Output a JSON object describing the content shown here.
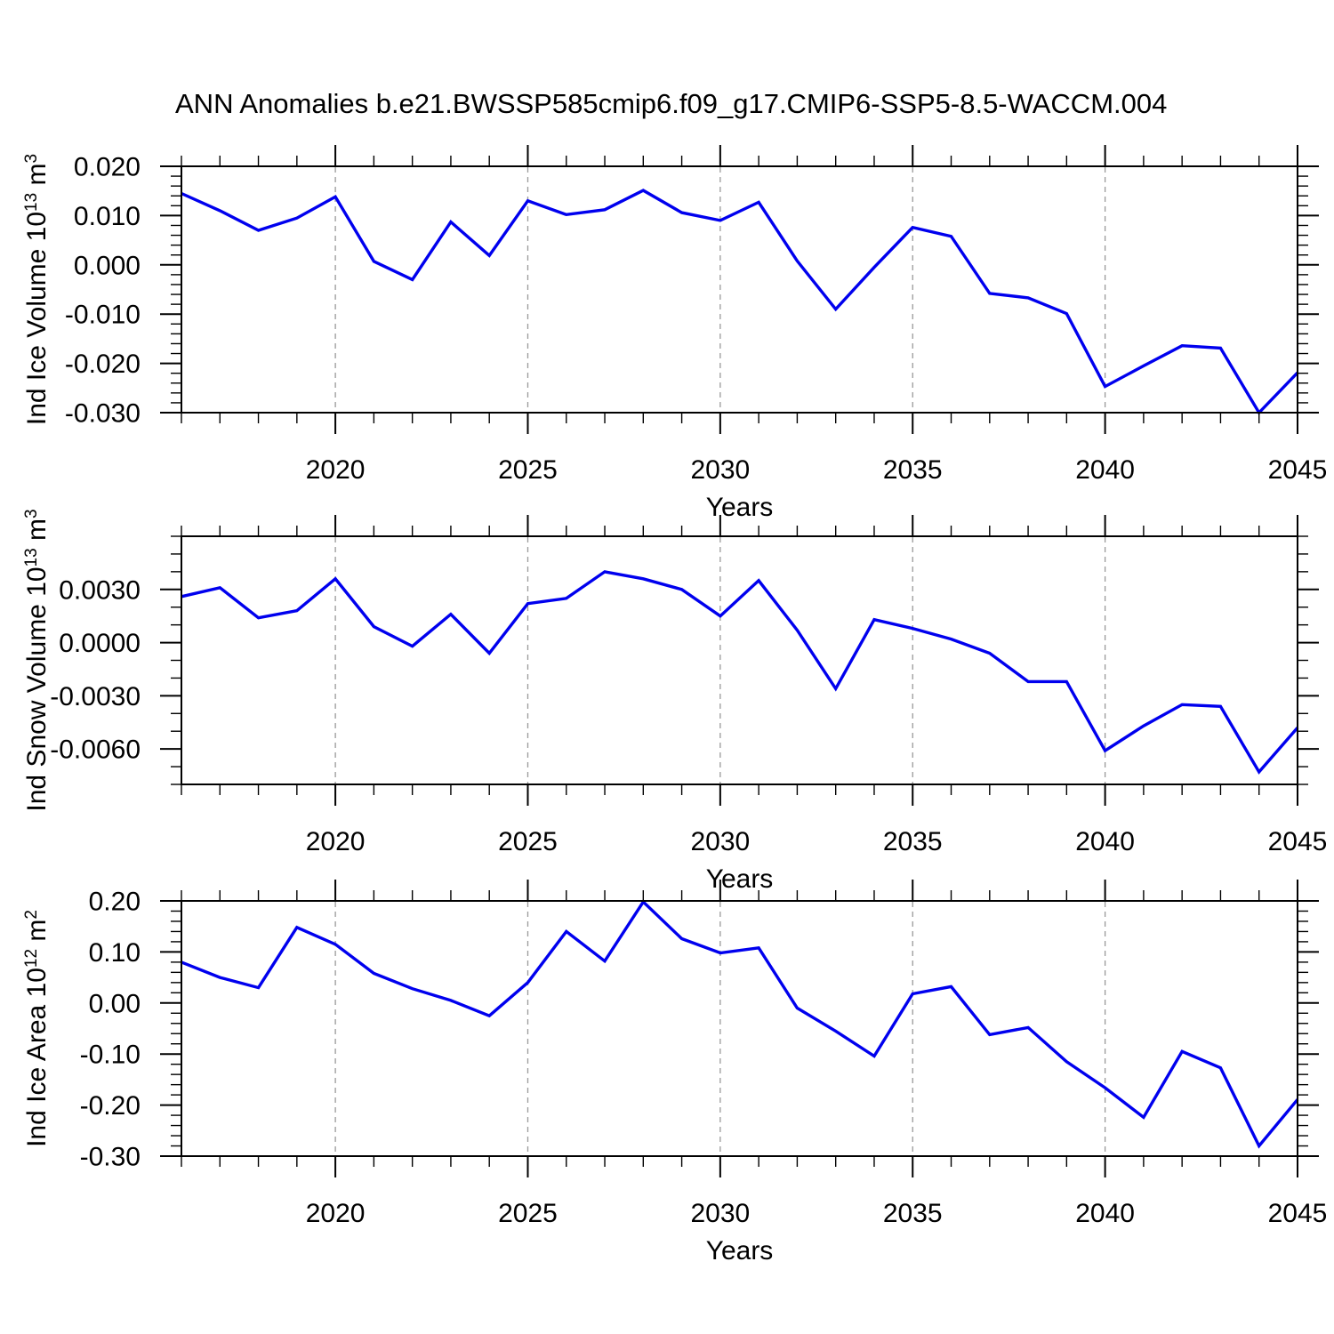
{
  "title": "ANN Anomalies b.e21.BWSSP585cmip6.f09_g17.CMIP6-SSP5-8.5-WACCM.004",
  "colors": {
    "line": "#0000ee",
    "grid": "#999999",
    "axis": "#000000",
    "background": "#ffffff",
    "text": "#000000"
  },
  "x_axis": {
    "label": "Years",
    "years_start": 2016,
    "years_end": 2045,
    "minor_tick_step": 1,
    "major_tick_years": [
      2020,
      2025,
      2030,
      2035,
      2040,
      2045
    ],
    "major_tick_labels": [
      "2020",
      "2025",
      "2030",
      "2035",
      "2040",
      "2045"
    ],
    "gridline_years": [
      2020,
      2025,
      2030,
      2035,
      2040
    ]
  },
  "chart_data": [
    {
      "type": "line",
      "ylabel": "Ind Ice Volume 10^13^ m^3^",
      "xlabel": "Years",
      "ylim": [
        -0.03,
        0.02
      ],
      "ytick_values": [
        0.02,
        0.01,
        0.0,
        -0.01,
        -0.02,
        -0.03
      ],
      "ytick_labels": [
        "0.020",
        "0.010",
        "0.000",
        "-0.010",
        "-0.020",
        "-0.030"
      ],
      "yminor_step": 0.002,
      "grid": "vertical-dashed",
      "legend": "none",
      "x": [
        2016,
        2017,
        2018,
        2019,
        2020,
        2021,
        2022,
        2023,
        2024,
        2025,
        2026,
        2027,
        2028,
        2029,
        2030,
        2031,
        2032,
        2033,
        2034,
        2035,
        2036,
        2037,
        2038,
        2039,
        2040,
        2041,
        2042,
        2043,
        2044,
        2045
      ],
      "values": [
        0.0145,
        0.011,
        0.007,
        0.0095,
        0.0138,
        0.0007,
        -0.003,
        0.0087,
        0.0019,
        0.013,
        0.0102,
        0.0112,
        0.0151,
        0.0106,
        0.009,
        0.0127,
        0.0008,
        -0.009,
        -0.0005,
        0.0076,
        0.0058,
        -0.0058,
        -0.0067,
        -0.0099,
        -0.0247,
        -0.0205,
        -0.0164,
        -0.0169,
        -0.03,
        -0.0219
      ]
    },
    {
      "type": "line",
      "ylabel": "Ind Snow Volume 10^13^ m^3^",
      "xlabel": "Years",
      "ylim": [
        -0.008,
        0.006
      ],
      "ytick_values": [
        0.003,
        0.0,
        -0.003,
        -0.006
      ],
      "ytick_labels": [
        "0.0030",
        "0.0000",
        "-0.0030",
        "-0.0060"
      ],
      "yminor_step": 0.001,
      "grid": "vertical-dashed",
      "legend": "none",
      "x": [
        2016,
        2017,
        2018,
        2019,
        2020,
        2021,
        2022,
        2023,
        2024,
        2025,
        2026,
        2027,
        2028,
        2029,
        2030,
        2031,
        2032,
        2033,
        2034,
        2035,
        2036,
        2037,
        2038,
        2039,
        2040,
        2041,
        2042,
        2043,
        2044,
        2045
      ],
      "values": [
        0.0026,
        0.0031,
        0.0014,
        0.0018,
        0.0036,
        0.0009,
        -0.0002,
        0.0016,
        -0.0006,
        0.0022,
        0.0025,
        0.004,
        0.0036,
        0.003,
        0.0015,
        0.0035,
        0.0007,
        -0.0026,
        0.0013,
        0.0008,
        0.0002,
        -0.0006,
        -0.0022,
        -0.0022,
        -0.0061,
        -0.0047,
        -0.0035,
        -0.0036,
        -0.0073,
        -0.0048
      ]
    },
    {
      "type": "line",
      "ylabel": "Ind Ice Area 10^12^ m^2^",
      "xlabel": "Years",
      "ylim": [
        -0.3,
        0.2
      ],
      "ytick_values": [
        0.2,
        0.1,
        0.0,
        -0.1,
        -0.2,
        -0.3
      ],
      "ytick_labels": [
        "0.20",
        "0.10",
        "0.00",
        "-0.10",
        "-0.20",
        "-0.30"
      ],
      "yminor_step": 0.02,
      "grid": "vertical-dashed",
      "legend": "none",
      "x": [
        2016,
        2017,
        2018,
        2019,
        2020,
        2021,
        2022,
        2023,
        2024,
        2025,
        2026,
        2027,
        2028,
        2029,
        2030,
        2031,
        2032,
        2033,
        2034,
        2035,
        2036,
        2037,
        2038,
        2039,
        2040,
        2041,
        2042,
        2043,
        2044,
        2045
      ],
      "values": [
        0.08,
        0.05,
        0.03,
        0.148,
        0.115,
        0.058,
        0.028,
        0.005,
        -0.025,
        0.04,
        0.14,
        0.082,
        0.198,
        0.126,
        0.098,
        0.108,
        -0.01,
        -0.055,
        -0.104,
        0.018,
        0.032,
        -0.062,
        -0.048,
        -0.115,
        -0.166,
        -0.224,
        -0.095,
        -0.127,
        -0.28,
        -0.189
      ]
    }
  ]
}
